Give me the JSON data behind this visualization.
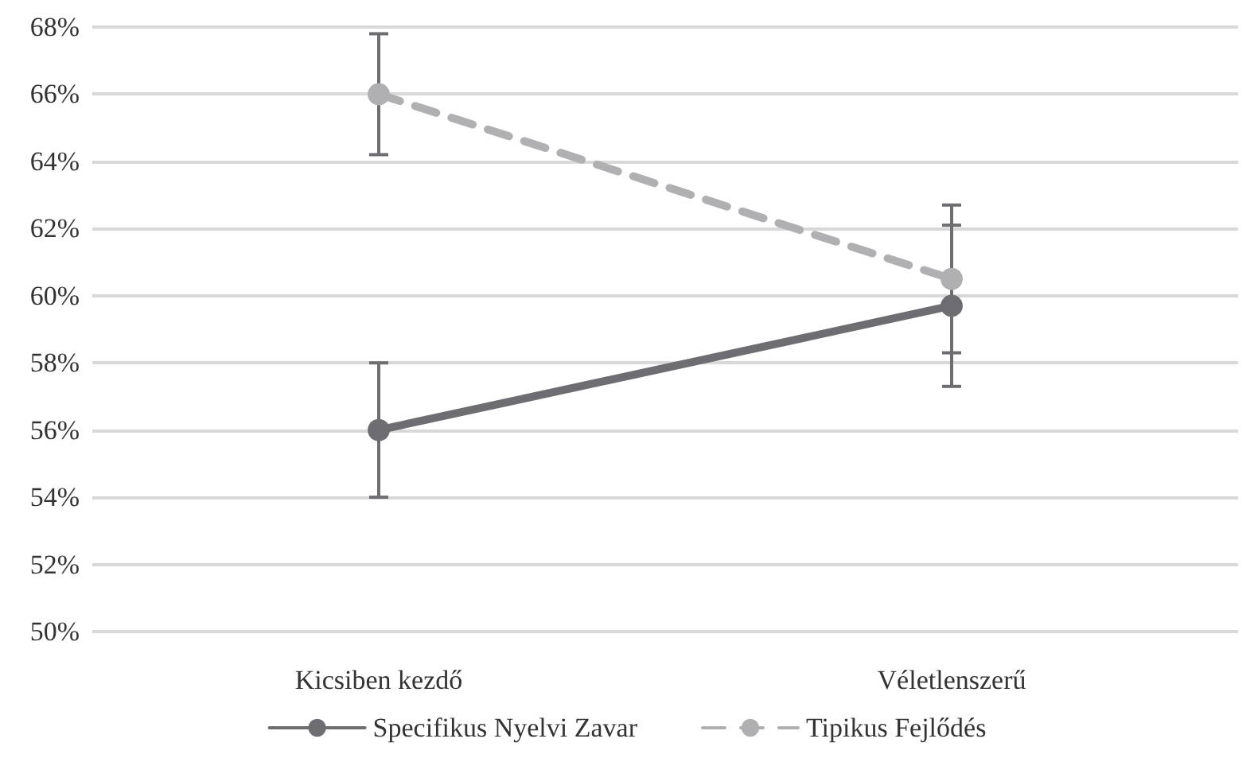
{
  "chart_data": {
    "type": "line",
    "categories": [
      "Kicsiben kezdő",
      "Véletlenszerű"
    ],
    "series": [
      {
        "name": "Specifikus Nyelvi Zavar",
        "color": "#6e6e72",
        "values": [
          56,
          59.7
        ],
        "errors": [
          2,
          2.4
        ],
        "line_style": "solid"
      },
      {
        "name": "Tipikus Fejlődés",
        "color": "#b0b0b3",
        "values": [
          66,
          60.5
        ],
        "errors": [
          1.8,
          2.2
        ],
        "line_style": "dashed"
      }
    ],
    "ylim": [
      50,
      68
    ],
    "yticks": [
      {
        "value": 50,
        "label": "50%"
      },
      {
        "value": 52,
        "label": "52%"
      },
      {
        "value": 54,
        "label": "54%"
      },
      {
        "value": 56,
        "label": "56%"
      },
      {
        "value": 58,
        "label": "58%"
      },
      {
        "value": 60,
        "label": "60%"
      },
      {
        "value": 62,
        "label": "62%"
      },
      {
        "value": 64,
        "label": "64%"
      },
      {
        "value": 66,
        "label": "66%"
      },
      {
        "value": 68,
        "label": "68%"
      }
    ],
    "grid": "y",
    "legend": "bottom",
    "marker": "circle"
  }
}
